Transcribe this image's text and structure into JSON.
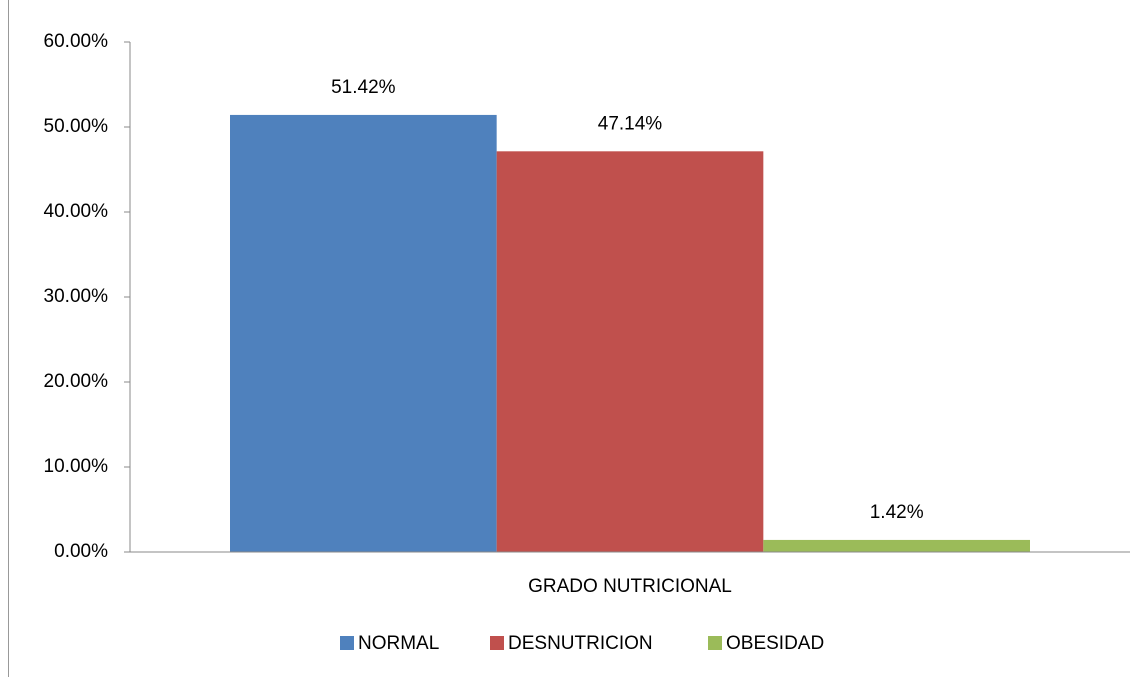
{
  "chart_data": {
    "type": "bar",
    "categories": [
      "GRADO NUTRICIONAL"
    ],
    "series": [
      {
        "name": "NORMAL",
        "color": "#4f81bd",
        "values": [
          51.42
        ],
        "value_labels": [
          "51.42%"
        ]
      },
      {
        "name": "DESNUTRICION",
        "color": "#c0504d",
        "values": [
          47.14
        ],
        "value_labels": [
          "47.14%"
        ]
      },
      {
        "name": "OBESIDAD",
        "color": "#9bbb59",
        "values": [
          1.42
        ],
        "value_labels": [
          "1.42%"
        ]
      }
    ],
    "ylim": [
      0,
      60
    ],
    "yticks": [
      {
        "value": 0,
        "label": "0.00%"
      },
      {
        "value": 10,
        "label": "10.00%"
      },
      {
        "value": 20,
        "label": "20.00%"
      },
      {
        "value": 30,
        "label": "30.00%"
      },
      {
        "value": 40,
        "label": "40.00%"
      },
      {
        "value": 50,
        "label": "50.00%"
      },
      {
        "value": 60,
        "label": "60.00%"
      }
    ],
    "legend": "bottom",
    "grid": false
  }
}
